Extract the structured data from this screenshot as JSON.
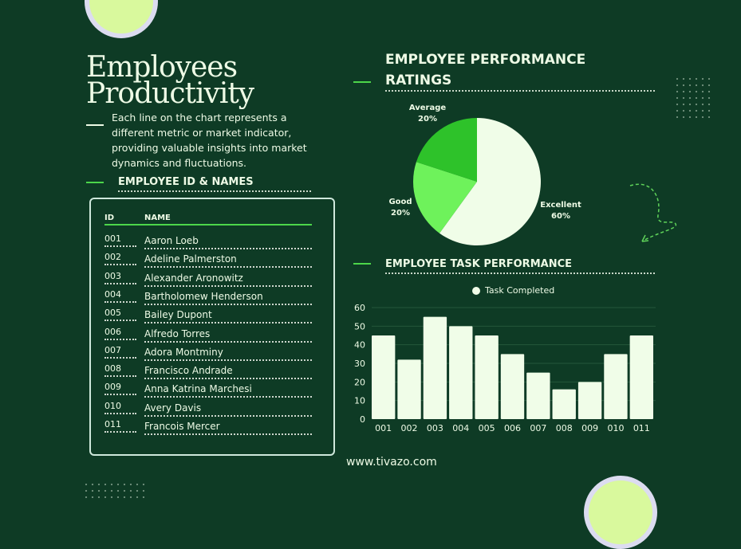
{
  "title_line1": "Employees",
  "title_line2": "Productivity",
  "description": "Each line on the chart represents a different metric or market indicator, providing valuable insights into market dynamics and fluctuations.",
  "employee_section": {
    "heading": "EMPLOYEE ID & NAMES",
    "columns": [
      "ID",
      "NAME"
    ],
    "rows": [
      {
        "id": "001",
        "name": "Aaron Loeb"
      },
      {
        "id": "002",
        "name": "Adeline Palmerston"
      },
      {
        "id": "003",
        "name": "Alexander Aronowitz"
      },
      {
        "id": "004",
        "name": "Bartholomew Henderson"
      },
      {
        "id": "005",
        "name": "Bailey Dupont"
      },
      {
        "id": "006",
        "name": "Alfredo Torres"
      },
      {
        "id": "007",
        "name": "Adora Montminy"
      },
      {
        "id": "008",
        "name": "Francisco Andrade"
      },
      {
        "id": "009",
        "name": "Anna Katrina Marchesi"
      },
      {
        "id": "010",
        "name": "Avery Davis"
      },
      {
        "id": "011",
        "name": "Francois Mercer"
      }
    ]
  },
  "footer_url": "www.tivazo.com",
  "colors": {
    "background": "#0e3b25",
    "bar": "#f0fde8",
    "accent": "#4cd64a"
  },
  "chart_data": [
    {
      "type": "pie",
      "title": "EMPLOYEE PERFORMANCE RATINGS",
      "slices": [
        {
          "label": "Excellent",
          "value": 60,
          "pct": "60%",
          "color": "#f0fde8"
        },
        {
          "label": "Good",
          "value": 20,
          "pct": "20%",
          "color": "#6ef25b"
        },
        {
          "label": "Average",
          "value": 20,
          "pct": "20%",
          "color": "#2ec22a"
        }
      ]
    },
    {
      "type": "bar",
      "title": "EMPLOYEE TASK PERFORMANCE",
      "legend": "Task Completed",
      "legend_position": "top-center",
      "categories": [
        "001",
        "002",
        "003",
        "004",
        "005",
        "006",
        "007",
        "008",
        "009",
        "010",
        "011"
      ],
      "values": [
        45,
        32,
        55,
        50,
        45,
        35,
        25,
        16,
        20,
        35,
        45
      ],
      "yticks": [
        "0",
        "10",
        "20",
        "30",
        "40",
        "50",
        "60"
      ],
      "ylim": [
        0,
        60
      ],
      "grid": true
    }
  ]
}
